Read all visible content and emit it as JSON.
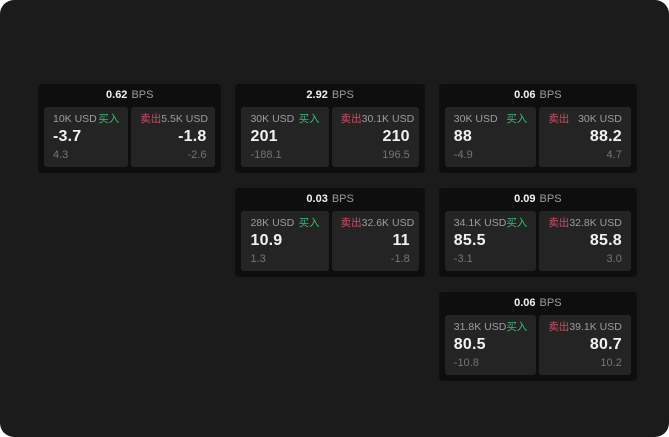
{
  "labels": {
    "bps": "BPS",
    "buy": "买入",
    "sell": "卖出"
  },
  "colors": {
    "page_bg": "#1b1b1b",
    "card_bg": "#0e0e0e",
    "tile_bg": "#242424",
    "text_primary": "#f2f2f2",
    "text_muted": "#9d9d9d",
    "text_sub": "#757575",
    "buy_green": "#3aba76",
    "sell_red": "#cb5066"
  },
  "cards": [
    {
      "row": 1,
      "col": 1,
      "bps": "0.62",
      "buy": {
        "amount": "10K USD",
        "price": "-3.7",
        "delta": "4.3"
      },
      "sell": {
        "amount": "5.5K USD",
        "price": "-1.8",
        "delta": "-2.6"
      }
    },
    {
      "row": 1,
      "col": 2,
      "bps": "2.92",
      "buy": {
        "amount": "30K USD",
        "price": "201",
        "delta": "-188.1"
      },
      "sell": {
        "amount": "30.1K USD",
        "price": "210",
        "delta": "196.5"
      }
    },
    {
      "row": 1,
      "col": 3,
      "bps": "0.06",
      "buy": {
        "amount": "30K USD",
        "price": "88",
        "delta": "-4.9"
      },
      "sell": {
        "amount": "30K USD",
        "price": "88.2",
        "delta": "4.7"
      }
    },
    {
      "row": 2,
      "col": 2,
      "bps": "0.03",
      "buy": {
        "amount": "28K USD",
        "price": "10.9",
        "delta": "1.3"
      },
      "sell": {
        "amount": "32.6K USD",
        "price": "11",
        "delta": "-1.8"
      }
    },
    {
      "row": 2,
      "col": 3,
      "bps": "0.09",
      "buy": {
        "amount": "34.1K USD",
        "price": "85.5",
        "delta": "-3.1"
      },
      "sell": {
        "amount": "32.8K USD",
        "price": "85.8",
        "delta": "3.0"
      }
    },
    {
      "row": 3,
      "col": 3,
      "bps": "0.06",
      "buy": {
        "amount": "31.8K USD",
        "price": "80.5",
        "delta": "-10.8"
      },
      "sell": {
        "amount": "39.1K USD",
        "price": "80.7",
        "delta": "10.2"
      }
    }
  ]
}
